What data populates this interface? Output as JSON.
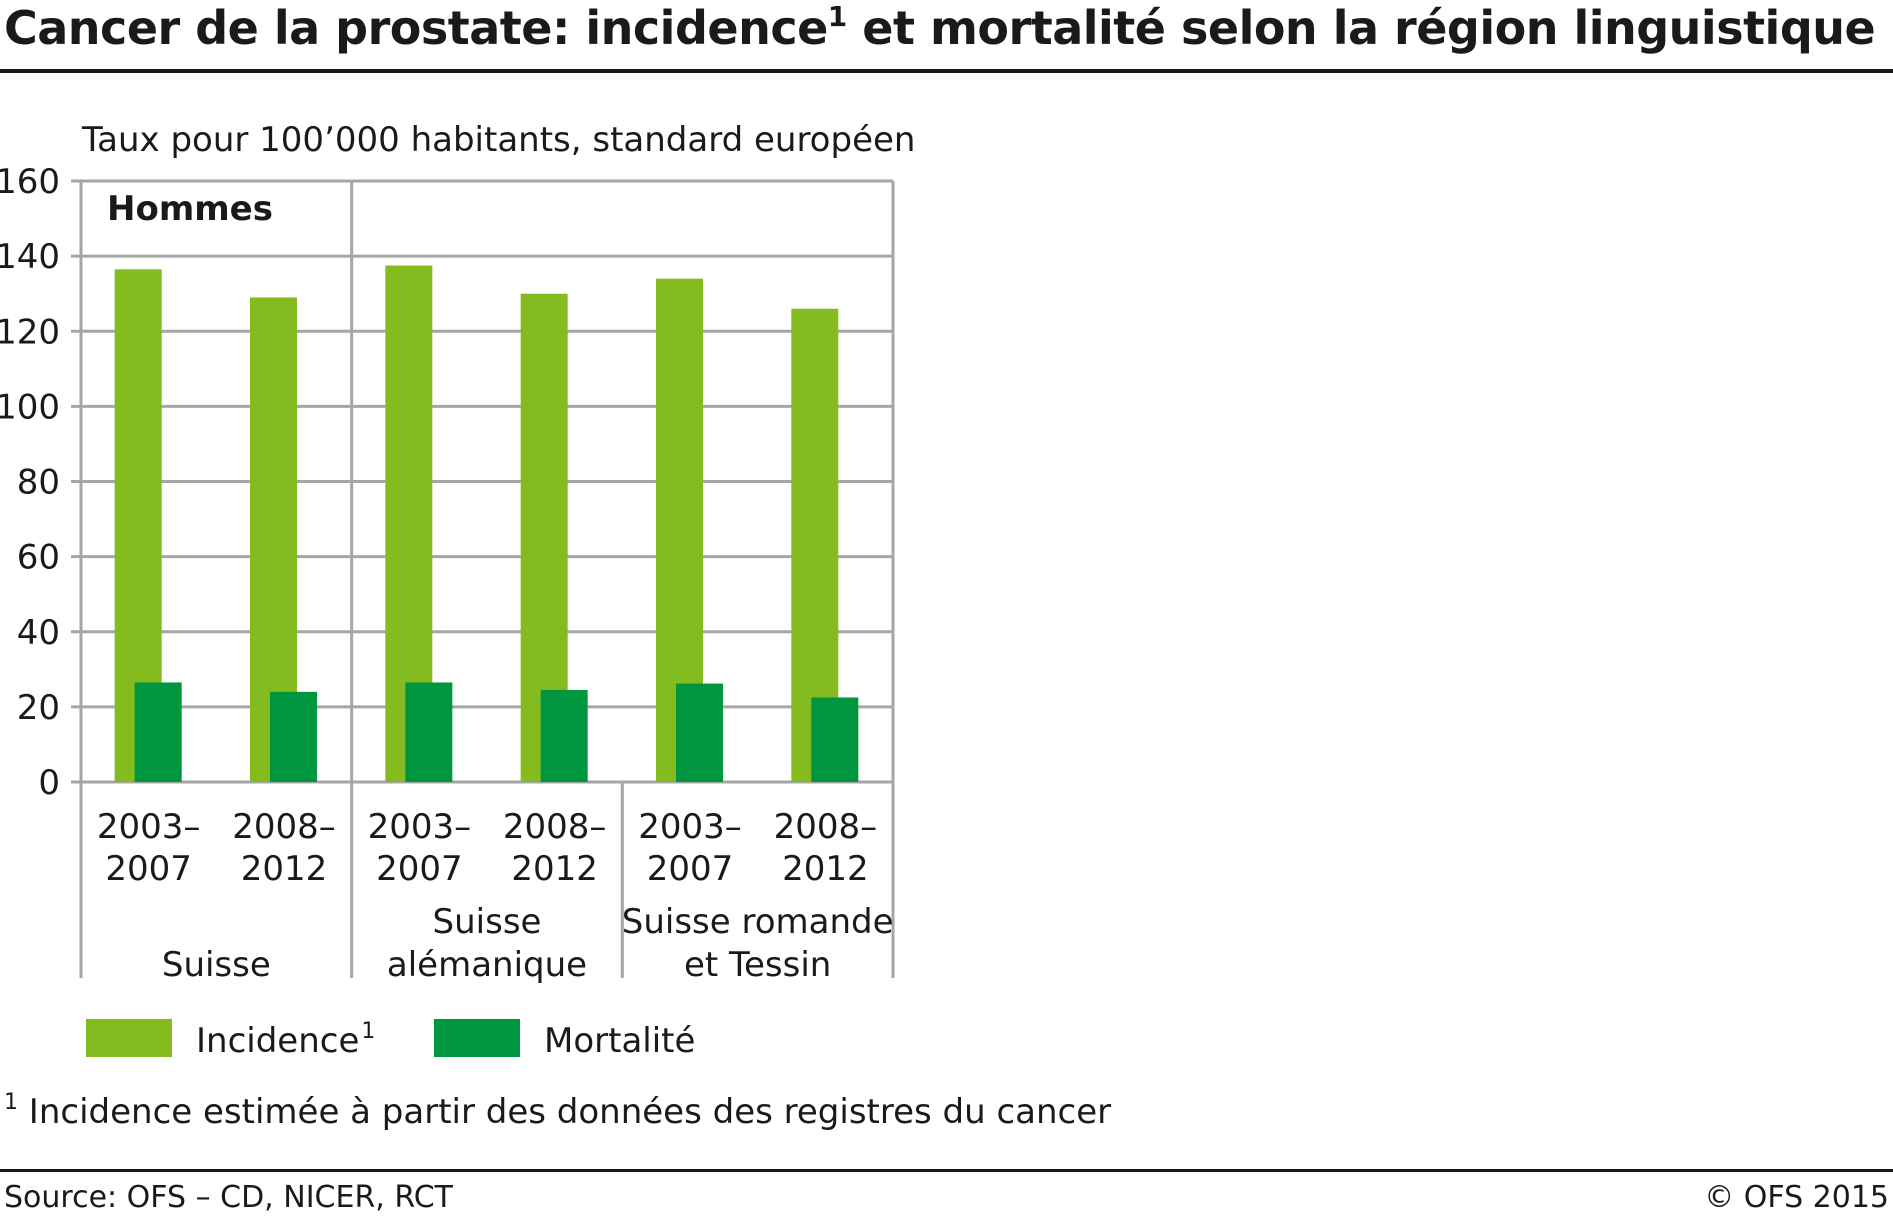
{
  "header": {
    "title": "Cancer de la prostate: incidence",
    "title_sup": "1",
    "title_rest": " et mortalité selon la région linguistique"
  },
  "footer": {
    "footnote_sup": "1",
    "footnote": " Incidence estimée à partir des données des registres du cancer",
    "source": "Source: OFS – CD, NICER, RCT",
    "copyright": "© OFS 2015"
  },
  "chart_data": {
    "type": "bar",
    "ylabel": "Taux pour 100’000 habitants, standard européen",
    "ylim": [
      0,
      160
    ],
    "yticks": [
      0,
      20,
      40,
      60,
      80,
      100,
      120,
      140,
      160
    ],
    "panel_label": "Hommes",
    "groups": [
      {
        "label": "Suisse",
        "categories": [
          "2003–\n2007",
          "2008–\n2012"
        ]
      },
      {
        "label": "Suisse\nalémanique",
        "categories": [
          "2003–\n2007",
          "2008–\n2012"
        ]
      },
      {
        "label": "Suisse romande\net Tessin",
        "categories": [
          "2003–\n2007",
          "2008–\n2012"
        ]
      }
    ],
    "series": [
      {
        "name": "Incidence",
        "name_sup": "1",
        "color": "#84bb1f",
        "values": [
          136.5,
          129,
          137.5,
          130,
          134,
          126
        ]
      },
      {
        "name": "Mortalité",
        "color": "#00963f",
        "values": [
          26.5,
          24,
          26.5,
          24.5,
          26.2,
          22.5
        ]
      }
    ],
    "grid": true,
    "legend_position": "bottom-left"
  }
}
